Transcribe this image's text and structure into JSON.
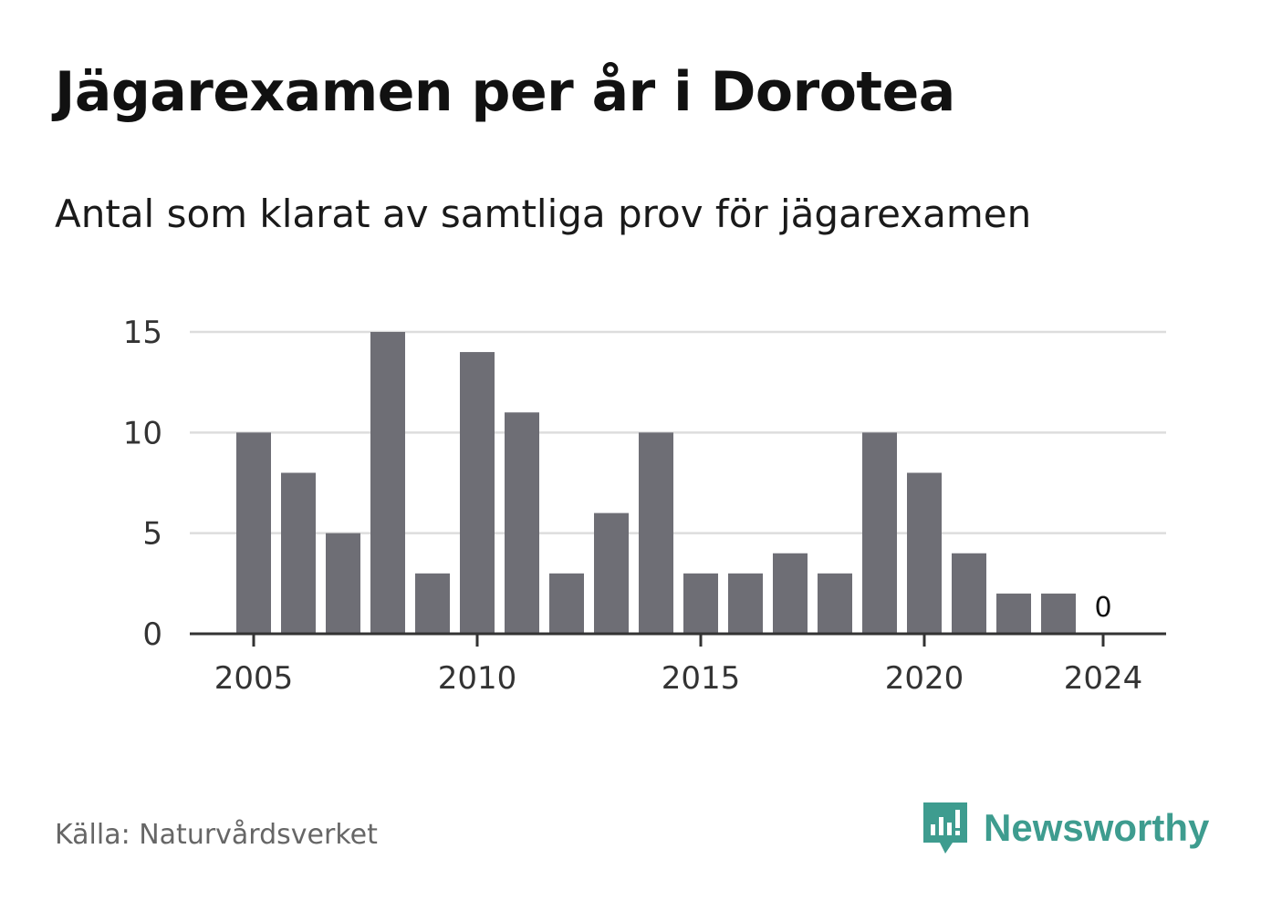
{
  "title": "Jägarexamen per år i Dorotea",
  "subtitle": "Antal som klarat av samtliga prov för jägarexamen",
  "source": "Källa: Naturvårdsverket",
  "brand": {
    "name": "Newsworthy",
    "icon": "newsworthy-logo-icon",
    "color": "#3e9c8f"
  },
  "chart_data": {
    "type": "bar",
    "x": [
      2005,
      2006,
      2007,
      2008,
      2009,
      2010,
      2011,
      2012,
      2013,
      2014,
      2015,
      2016,
      2017,
      2018,
      2019,
      2020,
      2021,
      2022,
      2023,
      2024
    ],
    "values": [
      10,
      8,
      5,
      15,
      3,
      14,
      11,
      3,
      6,
      10,
      3,
      3,
      4,
      3,
      10,
      8,
      4,
      2,
      2,
      0
    ],
    "ylim": [
      0,
      15
    ],
    "yticks": [
      0,
      5,
      10,
      15
    ],
    "xticks": [
      2005,
      2010,
      2015,
      2020,
      2024
    ],
    "data_labels": [
      {
        "x": 2024,
        "text": "0"
      }
    ],
    "bar_color": "#6e6e75",
    "grid": true
  }
}
